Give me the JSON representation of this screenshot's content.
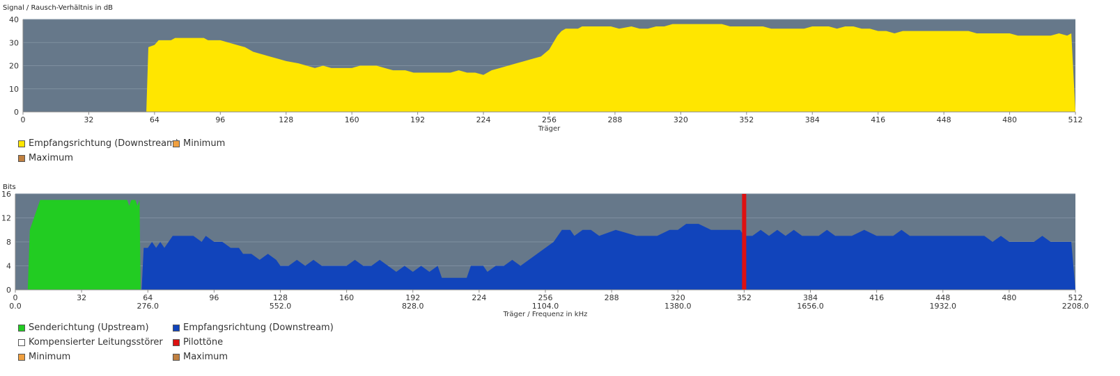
{
  "charts": {
    "snr": {
      "ylabel": "Signal / Rausch-Verhältnis in dB",
      "xlabel": "Träger",
      "legend": [
        {
          "label": "Empfangsrichtung (Downstream)",
          "color": "#ffe600"
        },
        {
          "label": "Minimum",
          "color": "#f0a040"
        },
        {
          "label": "Maximum",
          "color": "#c08040"
        }
      ]
    },
    "bits": {
      "ylabel": "Bits",
      "xlabel": "Träger / Frequenz in kHz",
      "legend": [
        {
          "label": "Senderichtung (Upstream)",
          "color": "#22cc22"
        },
        {
          "label": "Empfangsrichtung (Downstream)",
          "color": "#1144bb"
        },
        {
          "label": "Kompensierter Leitungsstörer",
          "color": "#ffffff"
        },
        {
          "label": "Pilottöne",
          "color": "#dd1111"
        },
        {
          "label": "Minimum",
          "color": "#f0a040"
        },
        {
          "label": "Maximum",
          "color": "#c08040"
        }
      ]
    }
  },
  "chart_data": [
    {
      "type": "area",
      "title": "",
      "ylabel": "Signal / Rausch-Verhältnis in dB",
      "xlabel": "Träger",
      "xlim": [
        0,
        512
      ],
      "ylim": [
        0,
        40
      ],
      "xticks": [
        0,
        32,
        64,
        96,
        128,
        160,
        192,
        224,
        256,
        288,
        320,
        352,
        384,
        416,
        448,
        480,
        512
      ],
      "yticks": [
        0,
        10,
        20,
        30,
        40
      ],
      "grid": true,
      "legend_position": "bottom-left",
      "series": [
        {
          "name": "Empfangsrichtung (Downstream)",
          "color": "#ffe600",
          "points": [
            [
              60,
              0
            ],
            [
              61,
              28
            ],
            [
              64,
              29
            ],
            [
              66,
              31
            ],
            [
              72,
              31
            ],
            [
              74,
              32
            ],
            [
              80,
              32
            ],
            [
              84,
              32
            ],
            [
              88,
              32
            ],
            [
              90,
              31
            ],
            [
              96,
              31
            ],
            [
              100,
              30
            ],
            [
              104,
              29
            ],
            [
              108,
              28
            ],
            [
              112,
              26
            ],
            [
              116,
              25
            ],
            [
              120,
              24
            ],
            [
              124,
              23
            ],
            [
              128,
              22
            ],
            [
              134,
              21
            ],
            [
              138,
              20
            ],
            [
              142,
              19
            ],
            [
              146,
              20
            ],
            [
              150,
              19
            ],
            [
              160,
              19
            ],
            [
              164,
              20
            ],
            [
              172,
              20
            ],
            [
              176,
              19
            ],
            [
              180,
              18
            ],
            [
              186,
              18
            ],
            [
              190,
              17
            ],
            [
              200,
              17
            ],
            [
              208,
              17
            ],
            [
              212,
              18
            ],
            [
              216,
              17
            ],
            [
              220,
              17
            ],
            [
              224,
              16
            ],
            [
              228,
              18
            ],
            [
              232,
              19
            ],
            [
              236,
              20
            ],
            [
              240,
              21
            ],
            [
              244,
              22
            ],
            [
              248,
              23
            ],
            [
              252,
              24
            ],
            [
              256,
              27
            ],
            [
              258,
              30
            ],
            [
              260,
              33
            ],
            [
              262,
              35
            ],
            [
              264,
              36
            ],
            [
              270,
              36
            ],
            [
              272,
              37
            ],
            [
              286,
              37
            ],
            [
              290,
              36
            ],
            [
              296,
              37
            ],
            [
              300,
              36
            ],
            [
              304,
              36
            ],
            [
              308,
              37
            ],
            [
              312,
              37
            ],
            [
              316,
              38
            ],
            [
              324,
              38
            ],
            [
              330,
              38
            ],
            [
              340,
              38
            ],
            [
              344,
              37
            ],
            [
              352,
              37
            ],
            [
              360,
              37
            ],
            [
              364,
              36
            ],
            [
              380,
              36
            ],
            [
              384,
              37
            ],
            [
              392,
              37
            ],
            [
              396,
              36
            ],
            [
              400,
              37
            ],
            [
              404,
              37
            ],
            [
              408,
              36
            ],
            [
              412,
              36
            ],
            [
              416,
              35
            ],
            [
              420,
              35
            ],
            [
              424,
              34
            ],
            [
              428,
              35
            ],
            [
              440,
              35
            ],
            [
              448,
              35
            ],
            [
              460,
              35
            ],
            [
              464,
              34
            ],
            [
              476,
              34
            ],
            [
              480,
              34
            ],
            [
              484,
              33
            ],
            [
              500,
              33
            ],
            [
              504,
              34
            ],
            [
              508,
              33
            ],
            [
              510,
              34
            ],
            [
              512,
              0
            ]
          ]
        }
      ]
    },
    {
      "type": "area",
      "title": "",
      "ylabel": "Bits",
      "xlabel": "Träger / Frequenz in kHz",
      "xlim": [
        0,
        512
      ],
      "ylim": [
        0,
        16
      ],
      "xticks": [
        0,
        32,
        64,
        96,
        128,
        160,
        192,
        224,
        256,
        288,
        320,
        352,
        384,
        416,
        448,
        480,
        512
      ],
      "xticks_freq_khz": [
        "0.0",
        "276.0",
        "552.0",
        "828.0",
        "1104.0",
        "1380.0",
        "1656.0",
        "1932.0",
        "2208.0"
      ],
      "yticks": [
        0,
        4,
        8,
        12,
        16
      ],
      "grid": true,
      "legend_position": "bottom-left",
      "series": [
        {
          "name": "Senderichtung (Upstream)",
          "color": "#22cc22",
          "points": [
            [
              6,
              0
            ],
            [
              7,
              10
            ],
            [
              8,
              11
            ],
            [
              10,
              13
            ],
            [
              12,
              15
            ],
            [
              54,
              15
            ],
            [
              55,
              14
            ],
            [
              56,
              15
            ],
            [
              58,
              15
            ],
            [
              59,
              14
            ],
            [
              60,
              15
            ],
            [
              60.5,
              0
            ]
          ]
        },
        {
          "name": "Empfangsrichtung (Downstream)",
          "color": "#1144bb",
          "points": [
            [
              61,
              0
            ],
            [
              62,
              7
            ],
            [
              64,
              7
            ],
            [
              66,
              8
            ],
            [
              68,
              7
            ],
            [
              70,
              8
            ],
            [
              72,
              7
            ],
            [
              74,
              8
            ],
            [
              76,
              9
            ],
            [
              82,
              9
            ],
            [
              86,
              9
            ],
            [
              90,
              8
            ],
            [
              92,
              9
            ],
            [
              96,
              8
            ],
            [
              100,
              8
            ],
            [
              104,
              7
            ],
            [
              108,
              7
            ],
            [
              110,
              6
            ],
            [
              114,
              6
            ],
            [
              118,
              5
            ],
            [
              122,
              6
            ],
            [
              126,
              5
            ],
            [
              128,
              4
            ],
            [
              132,
              4
            ],
            [
              136,
              5
            ],
            [
              140,
              4
            ],
            [
              144,
              5
            ],
            [
              148,
              4
            ],
            [
              160,
              4
            ],
            [
              164,
              5
            ],
            [
              168,
              4
            ],
            [
              172,
              4
            ],
            [
              176,
              5
            ],
            [
              180,
              4
            ],
            [
              184,
              3
            ],
            [
              188,
              4
            ],
            [
              192,
              3
            ],
            [
              196,
              4
            ],
            [
              200,
              3
            ],
            [
              204,
              4
            ],
            [
              206,
              2
            ],
            [
              218,
              2
            ],
            [
              220,
              4
            ],
            [
              226,
              4
            ],
            [
              228,
              3
            ],
            [
              232,
              4
            ],
            [
              236,
              4
            ],
            [
              240,
              5
            ],
            [
              244,
              4
            ],
            [
              248,
              5
            ],
            [
              252,
              6
            ],
            [
              256,
              7
            ],
            [
              260,
              8
            ],
            [
              264,
              10
            ],
            [
              268,
              10
            ],
            [
              270,
              9
            ],
            [
              274,
              10
            ],
            [
              278,
              10
            ],
            [
              282,
              9
            ],
            [
              290,
              10
            ],
            [
              300,
              9
            ],
            [
              310,
              9
            ],
            [
              316,
              10
            ],
            [
              320,
              10
            ],
            [
              324,
              11
            ],
            [
              330,
              11
            ],
            [
              336,
              10
            ],
            [
              344,
              10
            ],
            [
              350,
              10
            ],
            [
              352,
              9
            ],
            [
              356,
              9
            ],
            [
              360,
              10
            ],
            [
              364,
              9
            ],
            [
              368,
              10
            ],
            [
              372,
              9
            ],
            [
              376,
              10
            ],
            [
              380,
              9
            ],
            [
              388,
              9
            ],
            [
              392,
              10
            ],
            [
              396,
              9
            ],
            [
              404,
              9
            ],
            [
              410,
              10
            ],
            [
              416,
              9
            ],
            [
              424,
              9
            ],
            [
              428,
              10
            ],
            [
              432,
              9
            ],
            [
              440,
              9
            ],
            [
              448,
              9
            ],
            [
              456,
              9
            ],
            [
              464,
              9
            ],
            [
              468,
              9
            ],
            [
              472,
              8
            ],
            [
              476,
              9
            ],
            [
              480,
              8
            ],
            [
              492,
              8
            ],
            [
              496,
              9
            ],
            [
              500,
              8
            ],
            [
              510,
              8
            ],
            [
              512,
              0
            ]
          ]
        },
        {
          "name": "Pilottöne",
          "color": "#dd1111",
          "points": [
            [
              352,
              16
            ]
          ]
        }
      ]
    }
  ]
}
